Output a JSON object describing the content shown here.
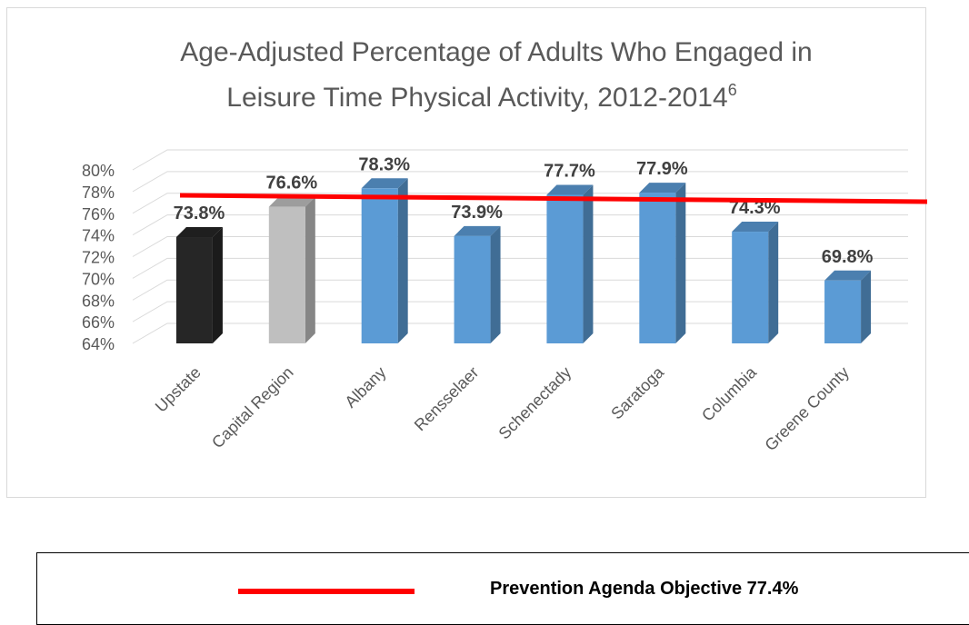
{
  "chart_data": {
    "type": "bar",
    "title_line1": "Age-Adjusted Percentage of Adults Who Engaged in",
    "title_line2": "Leisure Time Physical Activity, 2012-2014",
    "title_superscript": "6",
    "categories": [
      "Upstate",
      "Capital Region",
      "Albany",
      "Rensselaer",
      "Schenectady",
      "Saratoga",
      "Columbia",
      "Greene County"
    ],
    "values": [
      73.8,
      76.6,
      78.3,
      73.9,
      77.7,
      77.9,
      74.3,
      69.8
    ],
    "value_labels": [
      "73.8%",
      "76.6%",
      "78.3%",
      "73.9%",
      "77.7%",
      "77.9%",
      "74.3%",
      "69.8%"
    ],
    "bar_colors": [
      "#262626",
      "#bfbfbf",
      "#5b9bd5",
      "#5b9bd5",
      "#5b9bd5",
      "#5b9bd5",
      "#5b9bd5",
      "#5b9bd5"
    ],
    "yticks": [
      "64%",
      "66%",
      "68%",
      "70%",
      "72%",
      "74%",
      "76%",
      "78%",
      "80%"
    ],
    "ylim": [
      64,
      80
    ],
    "grid": true,
    "style": "3d-columns",
    "reference_line": {
      "label": "Prevention Agenda Objective 77.4%",
      "value": 77.4,
      "color": "#ff0000"
    },
    "legend_position": "bottom"
  }
}
